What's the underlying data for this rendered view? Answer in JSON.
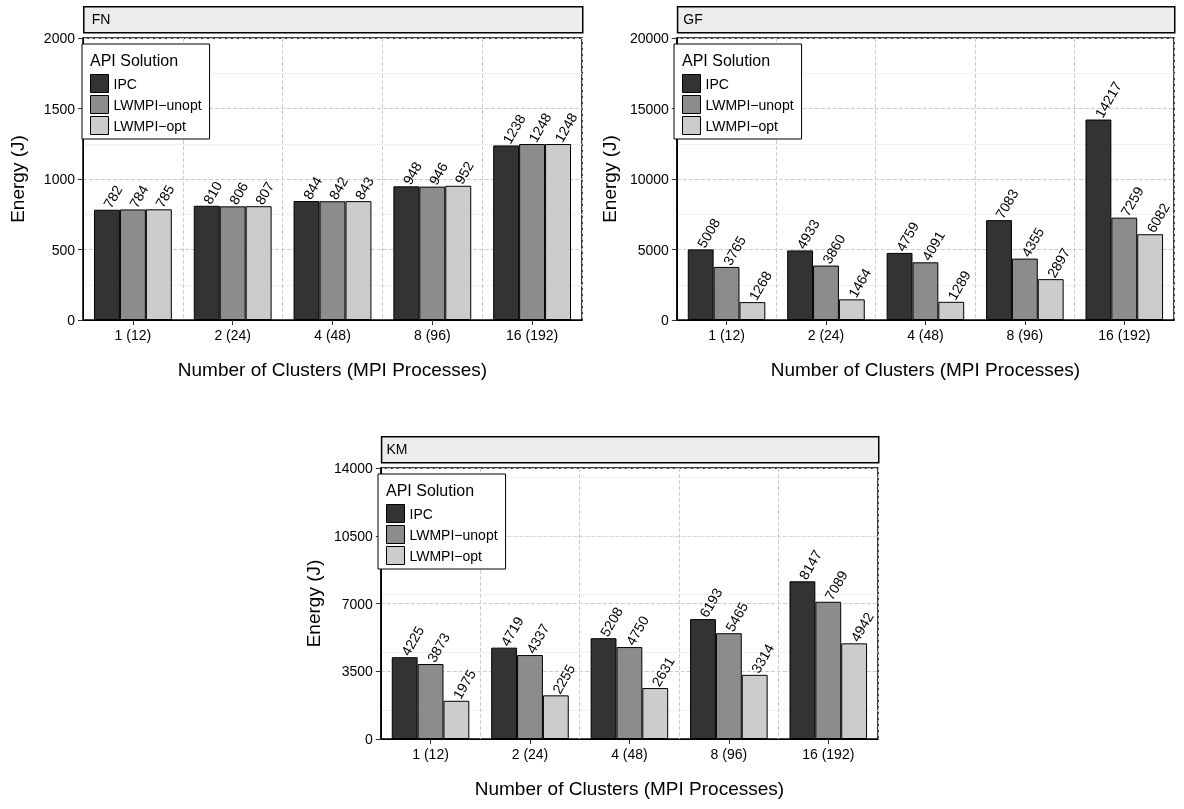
{
  "chart_data": [
    {
      "type": "bar",
      "title": "FN",
      "xlabel": "Number of Clusters (MPI Processes)",
      "ylabel": "Energy (J)",
      "legend_title": "API Solution",
      "legend": "top left",
      "grid": true,
      "data_labels": true,
      "categories": [
        "1 (12)",
        "2 (24)",
        "4 (48)",
        "8 (96)",
        "16 (192)"
      ],
      "ylim": [
        0,
        2000
      ],
      "yticks": [
        0,
        500,
        1000,
        1500,
        2000
      ],
      "series": [
        {
          "name": "IPC",
          "color": "#333333",
          "values": [
            782,
            810,
            844,
            948,
            1238
          ]
        },
        {
          "name": "LWMPI−unopt",
          "color": "#8c8c8c",
          "values": [
            784,
            806,
            842,
            946,
            1248
          ]
        },
        {
          "name": "LWMPI−opt",
          "color": "#cccccc",
          "values": [
            785,
            807,
            843,
            952,
            1248
          ]
        }
      ]
    },
    {
      "type": "bar",
      "title": "GF",
      "xlabel": "Number of Clusters (MPI Processes)",
      "ylabel": "Energy (J)",
      "legend_title": "API Solution",
      "legend": "top left",
      "grid": true,
      "data_labels": true,
      "categories": [
        "1 (12)",
        "2 (24)",
        "4 (48)",
        "8 (96)",
        "16 (192)"
      ],
      "ylim": [
        0,
        20000
      ],
      "yticks": [
        0,
        5000,
        10000,
        15000,
        20000
      ],
      "series": [
        {
          "name": "IPC",
          "color": "#333333",
          "values": [
            5008,
            4933,
            4759,
            7083,
            14217
          ]
        },
        {
          "name": "LWMPI−unopt",
          "color": "#8c8c8c",
          "values": [
            3765,
            3860,
            4091,
            4355,
            7259
          ]
        },
        {
          "name": "LWMPI−opt",
          "color": "#cccccc",
          "values": [
            1268,
            1464,
            1289,
            2897,
            6082
          ]
        }
      ]
    },
    {
      "type": "bar",
      "title": "KM",
      "xlabel": "Number of Clusters (MPI Processes)",
      "ylabel": "Energy (J)",
      "legend_title": "API Solution",
      "legend": "top left",
      "grid": true,
      "data_labels": true,
      "categories": [
        "1 (12)",
        "2 (24)",
        "4 (48)",
        "8 (96)",
        "16 (192)"
      ],
      "ylim": [
        0,
        14000
      ],
      "yticks": [
        0,
        3500,
        7000,
        10500,
        14000
      ],
      "series": [
        {
          "name": "IPC",
          "color": "#333333",
          "values": [
            4225,
            4719,
            5208,
            6193,
            8147
          ]
        },
        {
          "name": "LWMPI−unopt",
          "color": "#8c8c8c",
          "values": [
            3873,
            4337,
            4750,
            5465,
            7089
          ]
        },
        {
          "name": "LWMPI−opt",
          "color": "#cccccc",
          "values": [
            1975,
            2255,
            2631,
            3314,
            4942
          ]
        }
      ]
    }
  ]
}
